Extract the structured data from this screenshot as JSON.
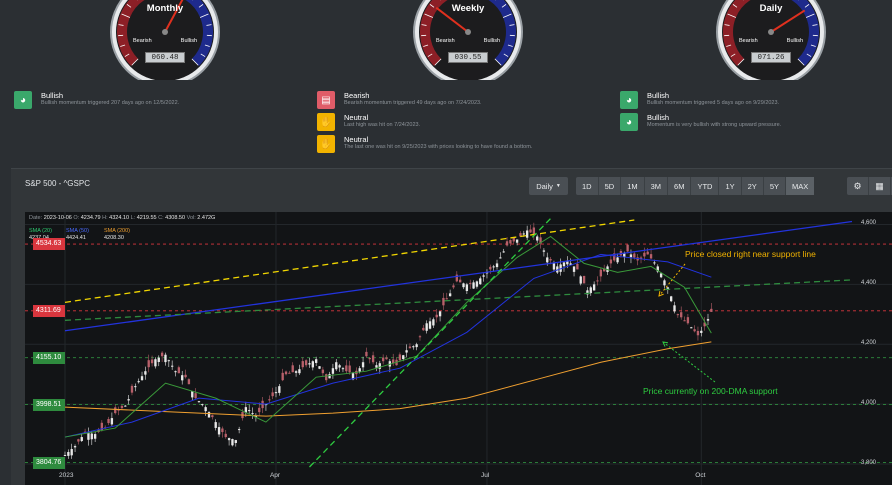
{
  "gauges": [
    {
      "title": "Monthly",
      "bear_label": "Bearish",
      "bull_label": "Bullish",
      "value": "060.48"
    },
    {
      "title": "Weekly",
      "bear_label": "Bearish",
      "bull_label": "Bullish",
      "value": "030.55"
    },
    {
      "title": "Daily",
      "bear_label": "Bearish",
      "bull_label": "Bullish",
      "value": "071.26"
    }
  ],
  "signals": {
    "monthly": [
      {
        "type": "bullish",
        "title": "Bullish",
        "sub": "Bullish momentum triggered 207 days ago on 12/5/2022."
      }
    ],
    "weekly": [
      {
        "type": "bearish",
        "title": "Bearish",
        "sub": "Bearish momentum triggered 49 days ago on 7/24/2023."
      },
      {
        "type": "neutral",
        "title": "Neutral",
        "sub": "Last high was hit on 7/24/2023."
      },
      {
        "type": "neutral",
        "title": "Neutral",
        "sub": "The last one was hit on 9/25/2023 with prices looking to have found a bottom."
      }
    ],
    "daily": [
      {
        "type": "bullish",
        "title": "Bullish",
        "sub": "Bullish momentum triggered 5 days ago on 9/29/2023."
      },
      {
        "type": "bullish",
        "title": "Bullish",
        "sub": "Momentum is very bullish with strong upward pressure."
      }
    ]
  },
  "panel": {
    "title": "S&P 500 - ^GSPC",
    "interval": "Daily",
    "ranges": [
      "1D",
      "5D",
      "1M",
      "3M",
      "6M",
      "YTD",
      "1Y",
      "2Y",
      "5Y",
      "MAX"
    ],
    "active_range": "MAX",
    "tools": [
      "settings-icon",
      "calculator-icon",
      "bus-icon"
    ]
  },
  "ohlc": {
    "date_label": "Date:",
    "date": "2023-10-06",
    "o_label": "O:",
    "o": "4234.79",
    "h_label": "H:",
    "h": "4324.10",
    "l_label": "L:",
    "l": "4219.55",
    "c_label": "C:",
    "c": "4308.50",
    "vol_label": "Vol:",
    "vol": "2.472G"
  },
  "ma_legend": [
    {
      "name": "SMA (20)",
      "value": "4237.04",
      "color": "#2ecc71"
    },
    {
      "name": "SMA (50)",
      "value": "4424.41",
      "color": "#4a6bff"
    },
    {
      "name": "SMA (200)",
      "value": "4208.30",
      "color": "#f0a030"
    }
  ],
  "price_tags": [
    {
      "label": "4534.63",
      "value": 4534.63,
      "color": "#d9363e"
    },
    {
      "label": "4311.69",
      "value": 4311.69,
      "color": "#d9363e"
    },
    {
      "label": "4155.10",
      "value": 4155.1,
      "color": "#2e8b3e"
    },
    {
      "label": "3998.51",
      "value": 3998.51,
      "color": "#2e8b3e"
    },
    {
      "label": "3804.76",
      "value": 3804.76,
      "color": "#2e8b3e"
    }
  ],
  "annotations": {
    "top": "Price closed right near support line",
    "bottom": "Price currently on 200-DMA support",
    "top_color": "#f2b300",
    "bottom_color": "#2ecc40"
  },
  "chart_data": {
    "type": "candlestick",
    "y_ticks": [
      "4,600",
      "4,400",
      "4,200",
      "4,000",
      "3,800"
    ],
    "y_tick_values": [
      4600,
      4400,
      4200,
      4000,
      3800
    ],
    "ylim": [
      3790,
      4615
    ],
    "x_ticks": [
      "2023",
      "Apr",
      "Jul",
      "Oct"
    ],
    "x_tick_index": [
      0,
      63,
      126,
      190
    ],
    "close_path": [
      [
        0,
        3830
      ],
      [
        3,
        3860
      ],
      [
        6,
        3905
      ],
      [
        9,
        3900
      ],
      [
        12,
        3920
      ],
      [
        15,
        3970
      ],
      [
        18,
        3995
      ],
      [
        21,
        4060
      ],
      [
        24,
        4110
      ],
      [
        27,
        4150
      ],
      [
        30,
        4165
      ],
      [
        33,
        4110
      ],
      [
        36,
        4090
      ],
      [
        39,
        4020
      ],
      [
        42,
        3990
      ],
      [
        45,
        3940
      ],
      [
        48,
        3890
      ],
      [
        51,
        3880
      ],
      [
        54,
        3990
      ],
      [
        57,
        3960
      ],
      [
        60,
        4000
      ],
      [
        63,
        4040
      ],
      [
        66,
        4100
      ],
      [
        69,
        4110
      ],
      [
        72,
        4130
      ],
      [
        75,
        4150
      ],
      [
        78,
        4080
      ],
      [
        81,
        4140
      ],
      [
        84,
        4110
      ],
      [
        87,
        4100
      ],
      [
        90,
        4160
      ],
      [
        93,
        4130
      ],
      [
        96,
        4150
      ],
      [
        99,
        4130
      ],
      [
        102,
        4180
      ],
      [
        105,
        4200
      ],
      [
        108,
        4270
      ],
      [
        111,
        4290
      ],
      [
        114,
        4350
      ],
      [
        117,
        4410
      ],
      [
        120,
        4400
      ],
      [
        123,
        4410
      ],
      [
        126,
        4440
      ],
      [
        129,
        4470
      ],
      [
        132,
        4530
      ],
      [
        135,
        4550
      ],
      [
        138,
        4580
      ],
      [
        141,
        4560
      ],
      [
        144,
        4490
      ],
      [
        147,
        4460
      ],
      [
        150,
        4480
      ],
      [
        153,
        4450
      ],
      [
        156,
        4380
      ],
      [
        159,
        4410
      ],
      [
        162,
        4460
      ],
      [
        165,
        4490
      ],
      [
        168,
        4510
      ],
      [
        171,
        4480
      ],
      [
        174,
        4500
      ],
      [
        177,
        4460
      ],
      [
        180,
        4390
      ],
      [
        183,
        4300
      ],
      [
        186,
        4270
      ],
      [
        189,
        4230
      ],
      [
        191,
        4260
      ],
      [
        193,
        4308
      ]
    ],
    "sma20": [
      [
        0,
        3890
      ],
      [
        15,
        3920
      ],
      [
        30,
        4070
      ],
      [
        45,
        4020
      ],
      [
        60,
        3940
      ],
      [
        75,
        4090
      ],
      [
        90,
        4110
      ],
      [
        105,
        4160
      ],
      [
        120,
        4340
      ],
      [
        135,
        4490
      ],
      [
        145,
        4560
      ],
      [
        155,
        4470
      ],
      [
        165,
        4440
      ],
      [
        175,
        4460
      ],
      [
        185,
        4390
      ],
      [
        193,
        4237
      ]
    ],
    "sma50": [
      [
        0,
        3890
      ],
      [
        20,
        3940
      ],
      [
        40,
        4020
      ],
      [
        60,
        4000
      ],
      [
        80,
        4070
      ],
      [
        100,
        4120
      ],
      [
        120,
        4240
      ],
      [
        140,
        4420
      ],
      [
        160,
        4500
      ],
      [
        180,
        4475
      ],
      [
        193,
        4424
      ]
    ],
    "sma200": [
      [
        0,
        3990
      ],
      [
        30,
        3975
      ],
      [
        60,
        3960
      ],
      [
        80,
        3970
      ],
      [
        100,
        3985
      ],
      [
        120,
        4020
      ],
      [
        140,
        4080
      ],
      [
        160,
        4140
      ],
      [
        180,
        4185
      ],
      [
        193,
        4208
      ]
    ],
    "levels": [
      4534.63,
      4311.69,
      4155.1,
      3998.51,
      3804.76
    ],
    "trendlines": [
      {
        "color": "#f2d700",
        "style": "dashed",
        "from": [
          0,
          4340
        ],
        "to": [
          170,
          4615
        ]
      },
      {
        "color": "#2233dd",
        "style": "solid",
        "from": [
          0,
          4245
        ],
        "to": [
          235,
          4610
        ]
      },
      {
        "color": "#2e8b3e",
        "style": "dashed",
        "from": [
          0,
          4280
        ],
        "to": [
          235,
          4415
        ]
      },
      {
        "color": "#2ecc40",
        "style": "dashed",
        "from": [
          73,
          3790
        ],
        "to": [
          145,
          4620
        ]
      }
    ]
  }
}
